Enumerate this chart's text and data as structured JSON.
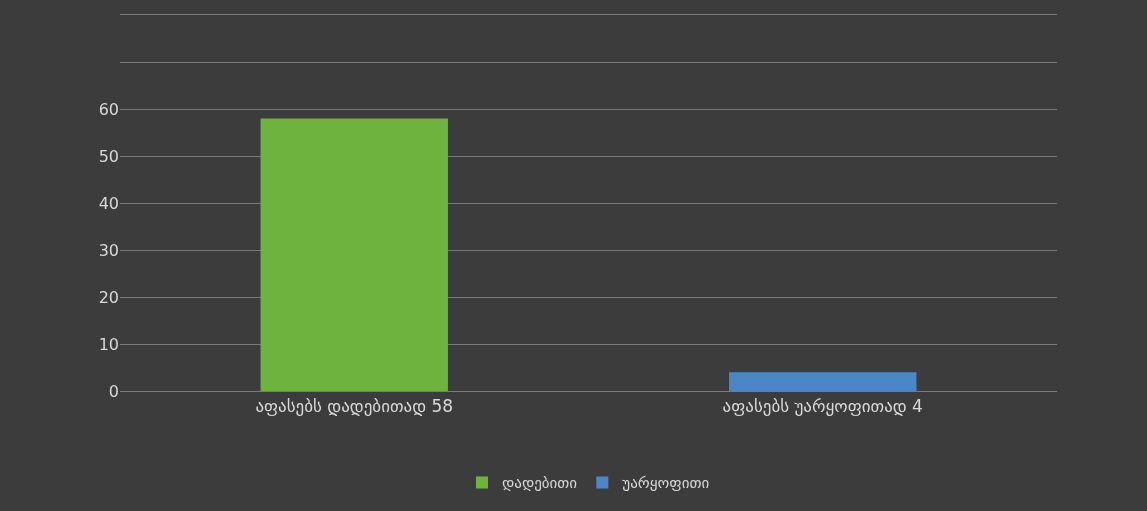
{
  "chart_data": {
    "type": "bar",
    "categories": [
      "აფასებს დადებითად 58",
      "აფასებს უარყოფითად 4"
    ],
    "series": [
      {
        "name": "დადებითი",
        "color": "#6fb33f",
        "values": [
          58,
          null
        ]
      },
      {
        "name": "უარყოფითი",
        "color": "#4a86c8",
        "values": [
          null,
          4
        ]
      }
    ],
    "ylim": [
      0,
      80
    ],
    "yticks": [
      0,
      10,
      20,
      30,
      40,
      50,
      60,
      {
        "value": 70,
        "label": null
      },
      {
        "value": 80,
        "label": null
      }
    ],
    "grid": "y",
    "legend": "bottom"
  }
}
